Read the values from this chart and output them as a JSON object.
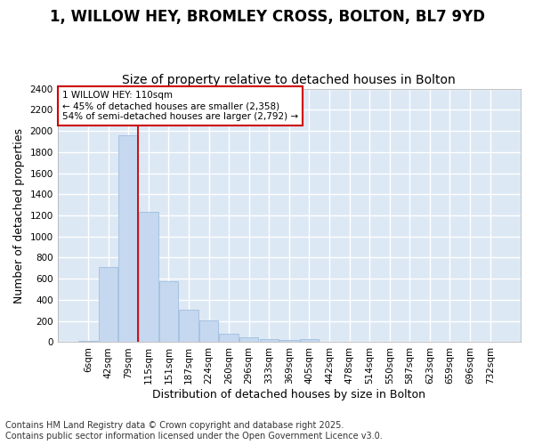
{
  "title_line1": "1, WILLOW HEY, BROMLEY CROSS, BOLTON, BL7 9YD",
  "title_line2": "Size of property relative to detached houses in Bolton",
  "xlabel": "Distribution of detached houses by size in Bolton",
  "ylabel": "Number of detached properties",
  "bar_color": "#c5d8f0",
  "bar_edge_color": "#a0bedd",
  "categories": [
    "6sqm",
    "42sqm",
    "79sqm",
    "115sqm",
    "151sqm",
    "187sqm",
    "224sqm",
    "260sqm",
    "296sqm",
    "333sqm",
    "369sqm",
    "405sqm",
    "442sqm",
    "478sqm",
    "514sqm",
    "550sqm",
    "587sqm",
    "623sqm",
    "659sqm",
    "696sqm",
    "732sqm"
  ],
  "values": [
    12,
    715,
    1960,
    1235,
    575,
    305,
    205,
    80,
    45,
    30,
    20,
    30,
    5,
    5,
    2,
    2,
    0,
    0,
    0,
    0,
    0
  ],
  "ylim": [
    0,
    2400
  ],
  "yticks": [
    0,
    200,
    400,
    600,
    800,
    1000,
    1200,
    1400,
    1600,
    1800,
    2000,
    2200,
    2400
  ],
  "vline_x_index": 2.5,
  "annotation_text": "1 WILLOW HEY: 110sqm\n← 45% of detached houses are smaller (2,358)\n54% of semi-detached houses are larger (2,792) →",
  "annotation_box_facecolor": "#ffffff",
  "annotation_box_edgecolor": "#cc0000",
  "bg_color": "#dde8f5",
  "grid_color": "#ffffff",
  "fig_bg_color": "#ffffff",
  "footer_text": "Contains HM Land Registry data © Crown copyright and database right 2025.\nContains public sector information licensed under the Open Government Licence v3.0.",
  "title_fontsize": 12,
  "subtitle_fontsize": 10,
  "tick_fontsize": 7.5,
  "label_fontsize": 9,
  "annotation_fontsize": 7.5,
  "footer_fontsize": 7
}
